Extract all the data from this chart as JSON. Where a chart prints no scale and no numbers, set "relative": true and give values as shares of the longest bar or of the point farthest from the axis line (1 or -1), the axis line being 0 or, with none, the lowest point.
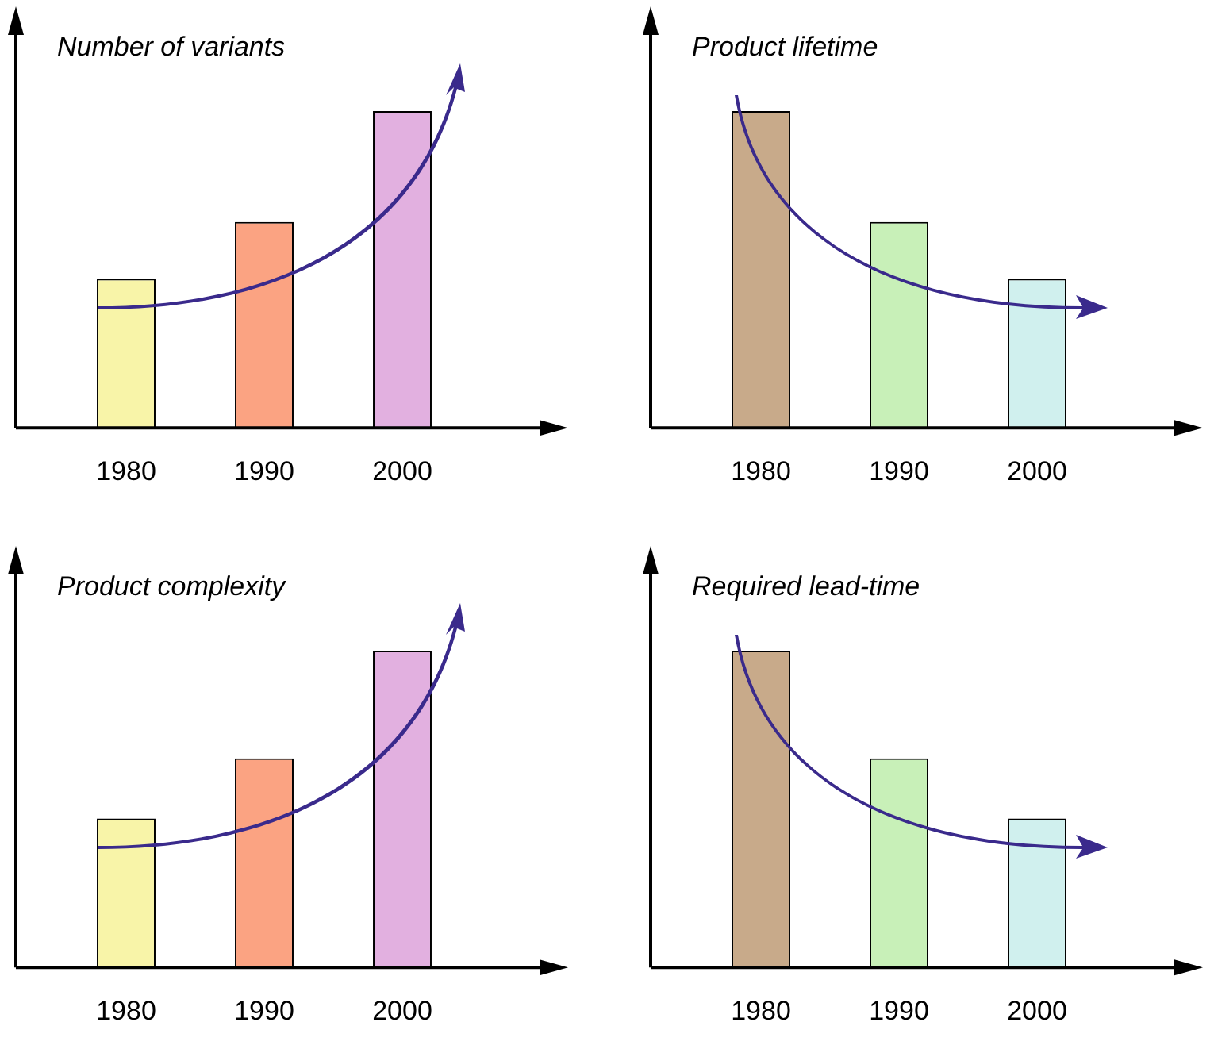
{
  "chart_data": [
    {
      "type": "bar",
      "title": "Number of variants",
      "relative": true,
      "categories": [
        "1980",
        "1990",
        "2000"
      ],
      "values": [
        0.47,
        0.65,
        1
      ],
      "colors": [
        "#f8f4a8",
        "#fba382",
        "#e2b0e0"
      ]
    },
    {
      "type": "bar",
      "title": "Product lifetime",
      "relative": true,
      "categories": [
        "1980",
        "1990",
        "2000"
      ],
      "values": [
        1,
        0.65,
        0.47
      ],
      "colors": [
        "#c8aa8a",
        "#c8f0b8",
        "#d0f0ee"
      ]
    },
    {
      "type": "bar",
      "title": "Product complexity",
      "relative": true,
      "categories": [
        "1980",
        "1990",
        "2000"
      ],
      "values": [
        0.47,
        0.66,
        1
      ],
      "colors": [
        "#f8f4a8",
        "#fba382",
        "#e2b0e0"
      ]
    },
    {
      "type": "bar",
      "title": "Required lead-time",
      "relative": true,
      "categories": [
        "1980",
        "1990",
        "2000"
      ],
      "values": [
        1,
        0.66,
        0.47
      ],
      "colors": [
        "#c8aa8a",
        "#c8f0b8",
        "#d0f0ee"
      ]
    }
  ]
}
